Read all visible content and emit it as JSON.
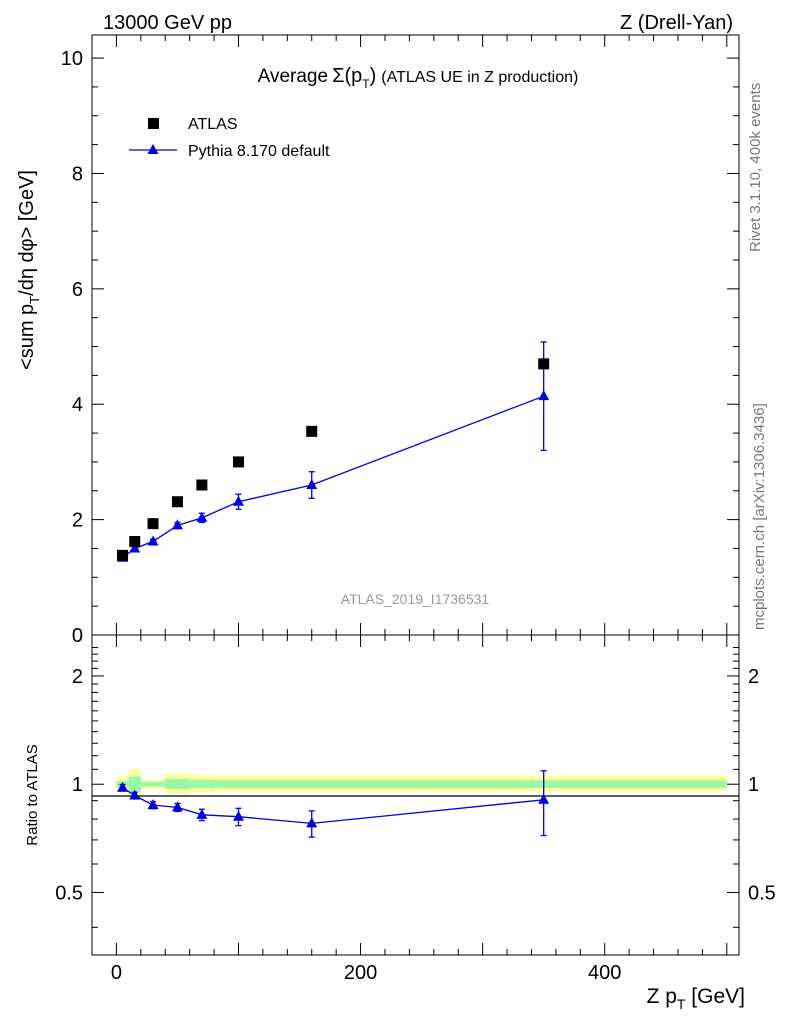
{
  "header": {
    "left": "13000 GeV pp",
    "right": "Z (Drell-Yan)"
  },
  "side_labels": {
    "rivet": "Rivet 3.1.10,  400k events",
    "mcplots": "mcplots.cern.ch [arXiv:1306.3436]"
  },
  "chart_data": [
    {
      "type": "scatter",
      "panel": "main",
      "title_main": "Average",
      "title_sigma": "Σ(p",
      "title_sigma_sub": "T",
      "title_close": ")",
      "title_rest": "(ATLAS UE in Z production)",
      "ylabel_parts": [
        "<sum p",
        "T",
        "/dη dφ> [GeV]"
      ],
      "ylim": [
        0,
        10.4
      ],
      "xlim": [
        -20,
        510
      ],
      "y_major_ticks": [
        0,
        2,
        4,
        6,
        8,
        10
      ],
      "y_tick_labels": [
        "0",
        "2",
        "4",
        "6",
        "8",
        "10"
      ],
      "watermark": "ATLAS_2019_I1736531",
      "legend_position": "top-left",
      "series": [
        {
          "name": "ATLAS",
          "marker": "square",
          "color": "#000000",
          "points": [
            {
              "x": 5,
              "y": 1.38
            },
            {
              "x": 15,
              "y": 1.62
            },
            {
              "x": 30,
              "y": 1.93
            },
            {
              "x": 50,
              "y": 2.31
            },
            {
              "x": 70,
              "y": 2.6
            },
            {
              "x": 100,
              "y": 3.0
            },
            {
              "x": 160,
              "y": 3.53
            },
            {
              "x": 350,
              "y": 4.7
            }
          ]
        },
        {
          "name": "Pythia 8.170 default",
          "marker": "triangle",
          "color": "#0000dd",
          "points": [
            {
              "x": 5,
              "y": 1.34,
              "err": 0.03
            },
            {
              "x": 15,
              "y": 1.5,
              "err": 0.04
            },
            {
              "x": 30,
              "y": 1.62,
              "err": 0.04
            },
            {
              "x": 50,
              "y": 1.9,
              "err": 0.05
            },
            {
              "x": 70,
              "y": 2.03,
              "err": 0.08
            },
            {
              "x": 100,
              "y": 2.31,
              "err": 0.13
            },
            {
              "x": 160,
              "y": 2.6,
              "err": 0.23
            },
            {
              "x": 350,
              "y": 4.14,
              "err": 0.94
            }
          ]
        }
      ]
    },
    {
      "type": "scatter",
      "panel": "ratio",
      "ylabel": "Ratio to ATLAS",
      "xlabel_parts": [
        "Z p",
        "T",
        " [GeV]"
      ],
      "ylim_log": [
        0.335,
        2.6
      ],
      "xlim": [
        -20,
        510
      ],
      "y_tick_labels": [
        {
          "v": 0.5,
          "t": "0.5"
        },
        {
          "v": 1,
          "t": "1"
        },
        {
          "v": 2,
          "t": "2"
        }
      ],
      "x_tick_labels": [
        {
          "v": 0,
          "t": "0"
        },
        {
          "v": 200,
          "t": "200"
        },
        {
          "v": 400,
          "t": "400"
        }
      ],
      "bands": [
        {
          "x0": 0,
          "x1": 10,
          "yellow": [
            0.95,
            1.05
          ],
          "green": [
            0.98,
            1.02
          ]
        },
        {
          "x0": 10,
          "x1": 20,
          "yellow": [
            0.91,
            1.1
          ],
          "green": [
            0.95,
            1.05
          ]
        },
        {
          "x0": 20,
          "x1": 40,
          "yellow": [
            0.97,
            1.03
          ],
          "green": [
            0.985,
            1.015
          ]
        },
        {
          "x0": 40,
          "x1": 60,
          "yellow": [
            0.94,
            1.07
          ],
          "green": [
            0.97,
            1.035
          ]
        },
        {
          "x0": 60,
          "x1": 80,
          "yellow": [
            0.95,
            1.06
          ],
          "green": [
            0.975,
            1.03
          ]
        },
        {
          "x0": 80,
          "x1": 120,
          "yellow": [
            0.955,
            1.055
          ],
          "green": [
            0.978,
            1.025
          ]
        },
        {
          "x0": 120,
          "x1": 200,
          "yellow": [
            0.955,
            1.055
          ],
          "green": [
            0.978,
            1.025
          ]
        },
        {
          "x0": 200,
          "x1": 500,
          "yellow": [
            0.955,
            1.055
          ],
          "green": [
            0.978,
            1.025
          ]
        }
      ],
      "series": [
        {
          "name": "Pythia 8.170 default",
          "color": "#0000dd",
          "points": [
            {
              "x": 5,
              "y": 0.978,
              "err": 0.02
            },
            {
              "x": 15,
              "y": 0.93,
              "err": 0.02
            },
            {
              "x": 30,
              "y": 0.875,
              "err": 0.02
            },
            {
              "x": 50,
              "y": 0.862,
              "err": 0.022
            },
            {
              "x": 70,
              "y": 0.822,
              "err": 0.03
            },
            {
              "x": 100,
              "y": 0.812,
              "err": 0.045
            },
            {
              "x": 160,
              "y": 0.778,
              "err": 0.065
            },
            {
              "x": 350,
              "y": 0.905,
              "err": 0.185
            }
          ]
        }
      ]
    }
  ]
}
